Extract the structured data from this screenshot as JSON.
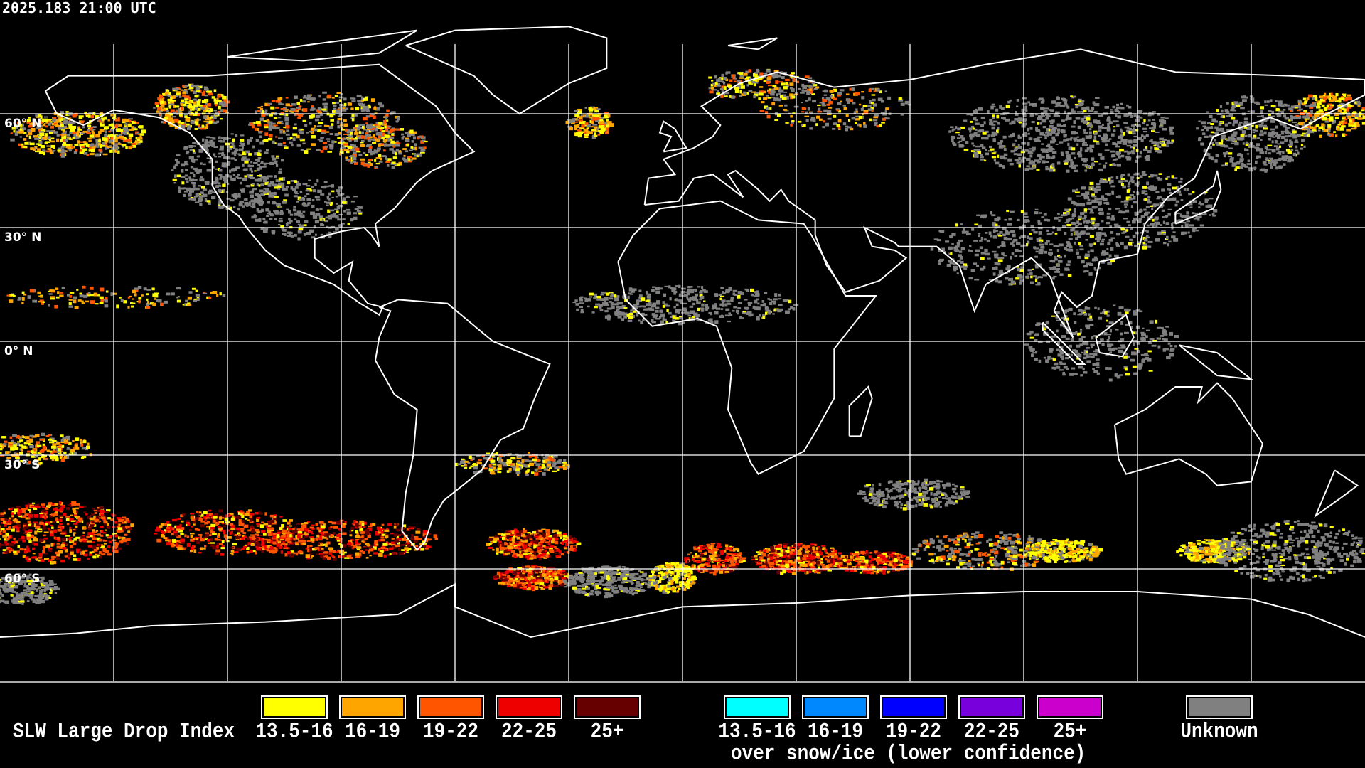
{
  "header": {
    "timestamp": "2025.183 21:00 UTC"
  },
  "map": {
    "projection": "equirectangular",
    "lat_labels": [
      "60° N",
      "30° N",
      "0° N",
      "30° S",
      "60° S"
    ],
    "gridline_interval_deg": 30,
    "coastline_color": "#ffffff",
    "background_color": "#000000"
  },
  "legend": {
    "title": "SLW Large Drop Index",
    "liquid": [
      {
        "label": "13.5-16",
        "color": "#ffff00"
      },
      {
        "label": "16-19",
        "color": "#ffa500"
      },
      {
        "label": "19-22",
        "color": "#ff5500"
      },
      {
        "label": "22-25",
        "color": "#ee0000"
      },
      {
        "label": "25+",
        "color": "#660000"
      }
    ],
    "snow_ice": [
      {
        "label": "13.5-16",
        "color": "#00ffff"
      },
      {
        "label": "16-19",
        "color": "#0088ff"
      },
      {
        "label": "19-22",
        "color": "#0000ff"
      },
      {
        "label": "22-25",
        "color": "#7700dd"
      },
      {
        "label": "25+",
        "color": "#cc00cc"
      }
    ],
    "snow_ice_note": "over snow/ice (lower confidence)",
    "unknown": {
      "label": "Unknown",
      "color": "#808080"
    }
  }
}
